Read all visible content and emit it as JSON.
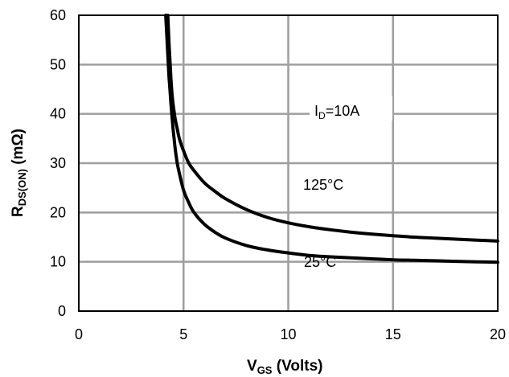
{
  "chart_data": {
    "type": "line",
    "x_ticks": [
      "0",
      "5",
      "10",
      "15",
      "20"
    ],
    "y_ticks": [
      "0",
      "10",
      "20",
      "30",
      "40",
      "50",
      "60"
    ],
    "xlim": [
      0,
      20
    ],
    "ylim": [
      0,
      60
    ],
    "grid": true,
    "xlabel": {
      "main": "V",
      "sub": "GS",
      "rest": " (Volts)"
    },
    "ylabel": {
      "main": "R",
      "sub": "DS(ON)",
      "rest": " (mΩ)"
    },
    "annotations": {
      "condition": {
        "main": "I",
        "sub": "D",
        "rest": "=10A"
      },
      "hot_label": "125°C",
      "cold_label": "25°C"
    },
    "series": [
      {
        "name": "125°C",
        "x": [
          4.25,
          4.3,
          4.35,
          4.4,
          4.45,
          4.5,
          4.6,
          4.7,
          4.8,
          5.0,
          5.25,
          5.5,
          6,
          6.5,
          7,
          8,
          9,
          10,
          11,
          12,
          13,
          14,
          15,
          16,
          17,
          18,
          19,
          20
        ],
        "y": [
          60,
          55,
          51,
          47,
          44,
          42,
          39,
          37,
          35,
          32.5,
          30,
          28.5,
          26,
          24.3,
          22.8,
          20.6,
          19,
          17.9,
          17.1,
          16.5,
          16.0,
          15.6,
          15.3,
          15.0,
          14.8,
          14.6,
          14.4,
          14.2
        ]
      },
      {
        "name": "25°C",
        "x": [
          4.15,
          4.2,
          4.25,
          4.3,
          4.35,
          4.4,
          4.5,
          4.6,
          4.7,
          4.8,
          5.0,
          5.25,
          5.5,
          6,
          6.5,
          7,
          8,
          9,
          10,
          11,
          12,
          13,
          14,
          15,
          16,
          17,
          18,
          19,
          20
        ],
        "y": [
          60,
          56,
          52,
          48,
          45,
          42,
          37,
          33,
          30,
          28,
          24.5,
          22,
          20,
          17.6,
          16.0,
          14.8,
          13.3,
          12.4,
          11.8,
          11.3,
          11.0,
          10.8,
          10.6,
          10.4,
          10.3,
          10.2,
          10.1,
          10.0,
          9.9
        ]
      }
    ]
  }
}
